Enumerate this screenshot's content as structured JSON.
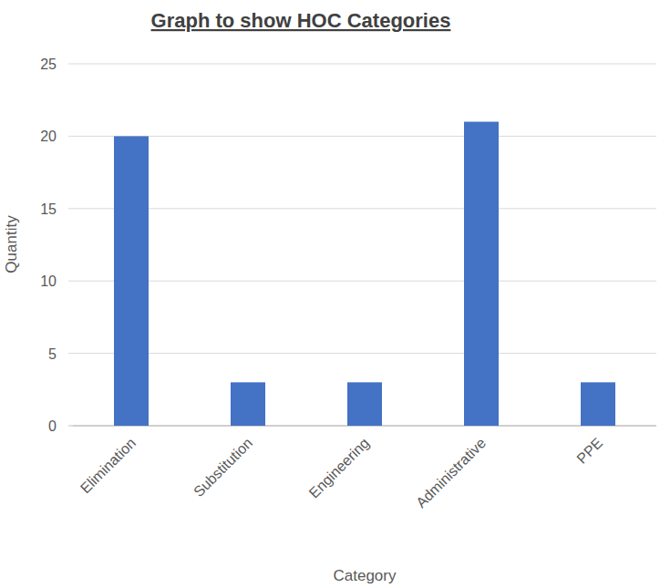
{
  "chart_data": {
    "type": "bar",
    "title": "Graph to show HOC Categories",
    "x_label": "Category",
    "y_label": "Quantity",
    "categories": [
      "Elimination",
      "Substitution",
      "Engineering",
      "Administrative",
      "PPE"
    ],
    "values": [
      20,
      3,
      3,
      21,
      3
    ],
    "color": "#4472c4",
    "ylim": [
      0,
      25
    ],
    "yticks": [
      0,
      5,
      10,
      15,
      20,
      25
    ],
    "grid": true
  }
}
